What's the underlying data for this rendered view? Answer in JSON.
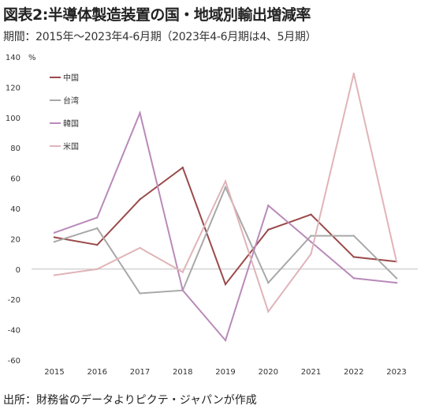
{
  "title": "図表2:半導体製造装置の国・地域別輸出増減率",
  "subtitle": "期間：2015年～2023年4-6月期（2023年4-6月期は4、5月期）",
  "source": "出所：財務省のデータよりピクテ・ジャパンが作成",
  "chart_data": {
    "type": "line",
    "x": [
      "2015",
      "2016",
      "2017",
      "2018",
      "2019",
      "2020",
      "2021",
      "2022",
      "2023"
    ],
    "y_unit": "%",
    "ylim": [
      -60,
      140
    ],
    "yticks": [
      "-60",
      "-40",
      "-20",
      "0",
      "20",
      "40",
      "60",
      "80",
      "100",
      "120",
      "140"
    ],
    "legend_position": "top-left",
    "series": [
      {
        "name": "中国",
        "color": "#9b4a4a",
        "values": [
          21,
          16,
          46,
          67,
          -10,
          26,
          36,
          8,
          5
        ]
      },
      {
        "name": "台湾",
        "color": "#a8a8a8",
        "values": [
          18,
          27,
          -16,
          -14,
          54,
          -9,
          22,
          22,
          -6
        ]
      },
      {
        "name": "韓国",
        "color": "#b98ab9",
        "values": [
          24,
          34,
          103,
          -14,
          -47,
          42,
          18,
          -6,
          -9
        ]
      },
      {
        "name": "米国",
        "color": "#e0b4b8",
        "values": [
          -4,
          0,
          14,
          -2,
          58,
          -28,
          10,
          129,
          5
        ]
      }
    ]
  }
}
